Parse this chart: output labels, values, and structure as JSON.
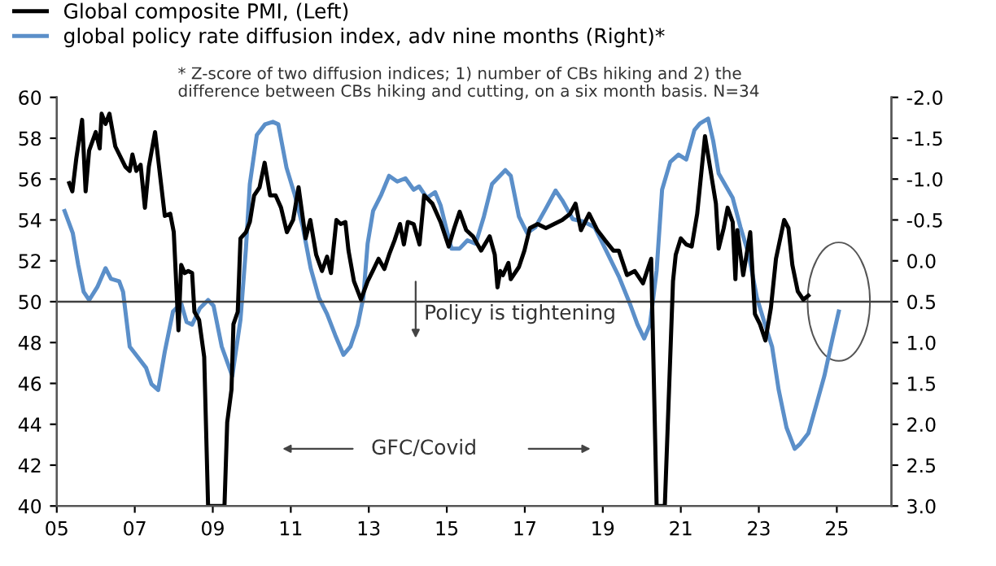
{
  "chart_data": {
    "type": "line",
    "series": [
      {
        "name": "Global composite PMI, (Left)",
        "color": "#000000",
        "x": [
          2005.32,
          2005.4,
          2005.5,
          2005.65,
          2005.74,
          2005.83,
          2006.0,
          2006.1,
          2006.15,
          2006.25,
          2006.35,
          2006.5,
          2006.76,
          2006.87,
          2006.94,
          2007.04,
          2007.15,
          2007.26,
          2007.36,
          2007.52,
          2007.66,
          2007.77,
          2007.91,
          2008.0,
          2008.12,
          2008.19,
          2008.28,
          2008.37,
          2008.47,
          2008.53,
          2008.65,
          2008.78,
          2008.88,
          2009.3,
          2009.37,
          2009.48,
          2009.53,
          2009.64,
          2009.71,
          2009.85,
          2009.95,
          2010.06,
          2010.2,
          2010.33,
          2010.47,
          2010.61,
          2010.75,
          2010.9,
          2011.06,
          2011.2,
          2011.38,
          2011.5,
          2011.65,
          2011.8,
          2011.93,
          2012.03,
          2012.17,
          2012.28,
          2012.4,
          2012.48,
          2012.62,
          2012.8,
          2012.97,
          2013.1,
          2013.25,
          2013.4,
          2013.52,
          2013.66,
          2013.8,
          2013.9,
          2014.0,
          2014.15,
          2014.3,
          2014.42,
          2014.63,
          2014.84,
          2015.05,
          2015.19,
          2015.33,
          2015.5,
          2015.67,
          2015.88,
          2016.1,
          2016.23,
          2016.3,
          2016.37,
          2016.44,
          2016.58,
          2016.64,
          2016.85,
          2016.99,
          2017.13,
          2017.33,
          2017.54,
          2017.75,
          2017.96,
          2018.16,
          2018.3,
          2018.44,
          2018.65,
          2018.86,
          2019.06,
          2019.27,
          2019.41,
          2019.62,
          2019.82,
          2020.03,
          2020.24,
          2020.38,
          2020.59,
          2020.8,
          2020.87,
          2021.0,
          2021.14,
          2021.28,
          2021.42,
          2021.62,
          2021.9,
          2021.97,
          2022.1,
          2022.2,
          2022.33,
          2022.4,
          2022.45,
          2022.6,
          2022.78,
          2022.9,
          2023.03,
          2023.17,
          2023.31,
          2023.44,
          2023.65,
          2023.76,
          2023.86,
          2024.0,
          2024.14,
          2024.27
        ],
        "values": [
          55.8,
          55.4,
          57.0,
          58.9,
          55.4,
          57.4,
          58.3,
          57.5,
          59.2,
          58.7,
          59.2,
          57.6,
          56.6,
          56.4,
          57.2,
          56.4,
          56.7,
          54.6,
          56.6,
          58.3,
          56.0,
          54.2,
          54.3,
          53.4,
          48.6,
          51.8,
          51.4,
          51.5,
          51.4,
          49.5,
          49.1,
          47.3,
          40,
          40,
          44.1,
          45.7,
          48.9,
          49.5,
          53.1,
          53.4,
          53.9,
          55.2,
          55.6,
          56.8,
          55.2,
          55.2,
          54.6,
          53.4,
          54.0,
          55.6,
          53.1,
          54.0,
          52.3,
          51.5,
          52.2,
          51.4,
          54.0,
          53.8,
          53.9,
          52.5,
          51.0,
          50.1,
          51.0,
          51.5,
          52.1,
          51.6,
          52.3,
          53.0,
          53.8,
          52.8,
          53.9,
          53.8,
          52.8,
          55.2,
          54.8,
          53.9,
          52.7,
          53.6,
          54.4,
          53.5,
          53.2,
          52.5,
          53.2,
          52.3,
          50.7,
          51.5,
          51.3,
          51.9,
          51.1,
          51.7,
          52.5,
          53.6,
          53.8,
          53.6,
          53.8,
          54.0,
          54.3,
          54.8,
          53.5,
          54.3,
          53.5,
          53.0,
          52.5,
          52.5,
          51.3,
          51.5,
          50.9,
          52.1,
          40,
          40,
          51.0,
          52.3,
          53.1,
          52.8,
          52.7,
          54.3,
          58.1,
          54.8,
          52.6,
          53.6,
          54.6,
          53.9,
          51.1,
          53.5,
          51.3,
          53.4,
          49.4,
          48.9,
          48.1,
          49.7,
          52.1,
          54.0,
          53.6,
          51.8,
          50.5,
          50.1,
          50.3
        ]
      },
      {
        "name": "global policy rate diffusion index, adv nine months (Right)*",
        "color": "#5b8fc9",
        "axis": "y2",
        "x": [
          2005.2,
          2005.41,
          2005.55,
          2005.69,
          2005.83,
          2006.04,
          2006.25,
          2006.39,
          2006.6,
          2006.7,
          2006.87,
          2007.08,
          2007.29,
          2007.43,
          2007.6,
          2007.77,
          2007.98,
          2008.19,
          2008.33,
          2008.47,
          2008.67,
          2008.88,
          2009.02,
          2009.23,
          2009.5,
          2009.71,
          2009.85,
          2009.95,
          2010.13,
          2010.34,
          2010.54,
          2010.68,
          2010.89,
          2011.1,
          2011.31,
          2011.51,
          2011.72,
          2011.93,
          2012.14,
          2012.35,
          2012.53,
          2012.72,
          2012.86,
          2012.97,
          2013.11,
          2013.32,
          2013.52,
          2013.73,
          2013.94,
          2014.15,
          2014.29,
          2014.49,
          2014.7,
          2014.84,
          2014.98,
          2015.12,
          2015.33,
          2015.53,
          2015.74,
          2015.95,
          2016.16,
          2016.5,
          2016.64,
          2016.85,
          2017.06,
          2017.27,
          2017.54,
          2017.79,
          2017.96,
          2018.23,
          2018.51,
          2018.79,
          2019.06,
          2019.41,
          2019.69,
          2019.89,
          2020.06,
          2020.21,
          2020.38,
          2020.52,
          2020.73,
          2020.94,
          2021.14,
          2021.35,
          2021.49,
          2021.7,
          2021.83,
          2021.97,
          2022.33,
          2022.53,
          2022.74,
          2022.95,
          2023.16,
          2023.34,
          2023.51,
          2023.71,
          2023.92,
          2024.06,
          2024.27,
          2024.47,
          2024.68,
          2024.89,
          2025.05
        ],
        "values": [
          -0.61,
          -0.34,
          0.05,
          0.38,
          0.48,
          0.32,
          0.09,
          0.22,
          0.25,
          0.38,
          1.05,
          1.18,
          1.31,
          1.51,
          1.58,
          1.11,
          0.62,
          0.52,
          0.75,
          0.78,
          0.58,
          0.48,
          0.55,
          1.05,
          1.41,
          0.72,
          -0.15,
          -0.94,
          -1.54,
          -1.67,
          -1.7,
          -1.67,
          -1.14,
          -0.81,
          -0.41,
          0.09,
          0.45,
          0.65,
          0.91,
          1.15,
          1.05,
          0.78,
          0.45,
          -0.21,
          -0.61,
          -0.81,
          -1.04,
          -0.97,
          -1.01,
          -0.87,
          -0.91,
          -0.77,
          -0.84,
          -0.68,
          -0.41,
          -0.15,
          -0.15,
          -0.25,
          -0.21,
          -0.54,
          -0.94,
          -1.11,
          -1.04,
          -0.54,
          -0.34,
          -0.41,
          -0.64,
          -0.86,
          -0.74,
          -0.51,
          -0.48,
          -0.41,
          -0.15,
          0.19,
          0.52,
          0.78,
          0.95,
          0.78,
          0.12,
          -0.87,
          -1.21,
          -1.3,
          -1.24,
          -1.6,
          -1.68,
          -1.74,
          -1.47,
          -1.07,
          -0.77,
          -0.41,
          -0.08,
          0.45,
          0.78,
          1.05,
          1.58,
          2.04,
          2.3,
          2.24,
          2.11,
          1.77,
          1.41,
          0.95,
          0.62
        ]
      }
    ],
    "xlim": [
      2005,
      2026.4
    ],
    "xticks": [
      {
        "value": 2005,
        "label": "05"
      },
      {
        "value": 2007,
        "label": "07"
      },
      {
        "value": 2009,
        "label": "09"
      },
      {
        "value": 2011,
        "label": "11"
      },
      {
        "value": 2013,
        "label": "13"
      },
      {
        "value": 2015,
        "label": "15"
      },
      {
        "value": 2017,
        "label": "17"
      },
      {
        "value": 2019,
        "label": "19"
      },
      {
        "value": 2021,
        "label": "21"
      },
      {
        "value": 2023,
        "label": "23"
      },
      {
        "value": 2025,
        "label": "25"
      }
    ],
    "ylim": [
      40,
      60
    ],
    "yticks": [
      40,
      42,
      44,
      46,
      48,
      50,
      52,
      54,
      56,
      58,
      60
    ],
    "y2lim": [
      3.0,
      -2.0
    ],
    "y2ticks": [
      {
        "value": -2,
        "label": "-2.0"
      },
      {
        "value": -1.5,
        "label": "-1.5"
      },
      {
        "value": -1,
        "label": "-1.0"
      },
      {
        "value": -0.5,
        "label": "-0.5"
      },
      {
        "value": 0,
        "label": "0.0"
      },
      {
        "value": 0.5,
        "label": "0.5"
      },
      {
        "value": 1,
        "label": "1.0"
      },
      {
        "value": 1.5,
        "label": "1.5"
      },
      {
        "value": 2,
        "label": "2.0"
      },
      {
        "value": 2.5,
        "label": "2.5"
      },
      {
        "value": 3,
        "label": "3.0"
      }
    ],
    "ref_lines": [
      {
        "axis": "y",
        "value": 50,
        "color": "#404040"
      }
    ],
    "annotations": [
      "* Z-score of two diffusion indices; 1) number of CBs hiking and 2) the\ndifference between CBs hiking and cutting, on a six month basis. N=34",
      "Policy is tightening",
      "GFC/Covid"
    ],
    "legend": "top left",
    "grid": false
  }
}
